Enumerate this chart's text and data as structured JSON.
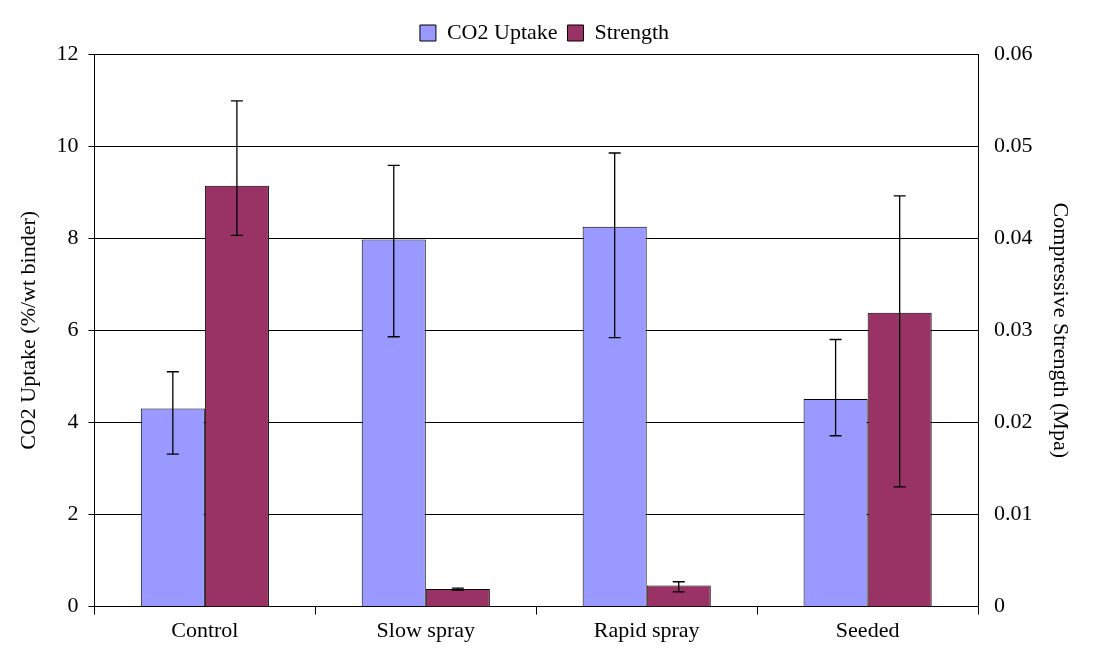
{
  "chart_data": {
    "type": "bar",
    "categories": [
      "Control",
      "Slow spray",
      "Rapid spray",
      "Seeded"
    ],
    "ylabel": "CO2 Uptake (%/wt binder)",
    "y2label": "Compressive Strength (Mpa)",
    "series": [
      {
        "name": "CO2 Uptake",
        "color": "#9999ff",
        "values": [
          4.3,
          7.97,
          8.25,
          4.51
        ],
        "errors": [
          [
            3.31,
            5.1
          ],
          [
            5.86,
            9.58
          ],
          [
            5.84,
            9.85
          ],
          [
            3.71,
            5.8
          ]
        ]
      },
      {
        "name": "Strength",
        "color": "#993366",
        "axis": "y2",
        "values": [
          0.0457,
          0.0019,
          0.0023,
          0.0319
        ],
        "errors": [
          [
            0.0403,
            0.0549
          ],
          [
            0.0018,
            0.002
          ],
          [
            0.0016,
            0.0027
          ],
          [
            0.013,
            0.0446
          ]
        ]
      }
    ],
    "ylim": [
      0,
      12
    ],
    "yticks": [
      0,
      2,
      4,
      6,
      8,
      10,
      12
    ],
    "y2lim": [
      0,
      0.06
    ],
    "y2ticks": [
      0,
      0.01,
      0.02,
      0.03,
      0.04,
      0.05,
      0.06
    ],
    "grid": "y",
    "legend": "top"
  }
}
